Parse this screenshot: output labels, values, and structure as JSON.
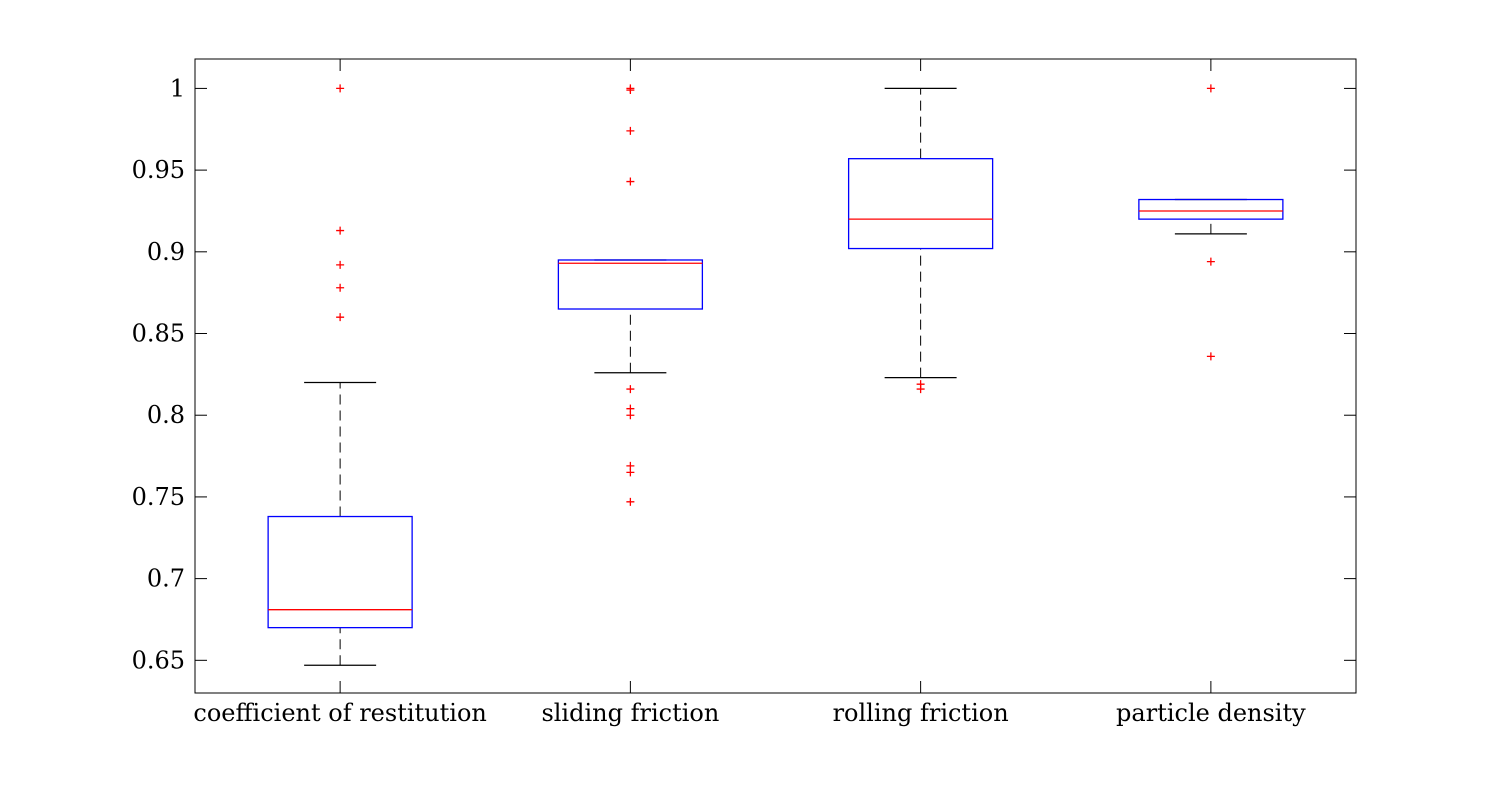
{
  "chart_data": {
    "type": "box",
    "title": "",
    "xlabel": "",
    "ylabel": "",
    "ylim": [
      0.63,
      1.018
    ],
    "y_ticks": [
      0.65,
      0.7,
      0.75,
      0.8,
      0.85,
      0.9,
      0.95,
      1
    ],
    "y_tick_labels": [
      "0.65",
      "0.7",
      "0.75",
      "0.8",
      "0.85",
      "0.9",
      "0.95",
      "1"
    ],
    "grid": false,
    "legend": "none",
    "colors": {
      "box": "#0000ff",
      "median": "#ff0000",
      "whisker": "#000000",
      "outlier": "#ff0000"
    },
    "categories": [
      "coefficient of restitution",
      "sliding friction",
      "rolling friction",
      "particle density"
    ],
    "boxes": [
      {
        "category": "coefficient of restitution",
        "whisker_low": 0.647,
        "q1": 0.67,
        "median": 0.681,
        "q3": 0.738,
        "whisker_high": 0.82,
        "outliers": [
          0.86,
          0.878,
          0.892,
          0.913,
          1.0
        ]
      },
      {
        "category": "sliding friction",
        "whisker_low": 0.826,
        "q1": 0.865,
        "median": 0.893,
        "q3": 0.895,
        "whisker_high": 0.895,
        "outliers": [
          0.747,
          0.765,
          0.769,
          0.8,
          0.804,
          0.816,
          0.943,
          0.974,
          0.999,
          1.0
        ]
      },
      {
        "category": "rolling friction",
        "whisker_low": 0.823,
        "q1": 0.902,
        "median": 0.92,
        "q3": 0.957,
        "whisker_high": 1.0,
        "outliers": [
          0.816,
          0.819
        ]
      },
      {
        "category": "particle density",
        "whisker_low": 0.911,
        "q1": 0.92,
        "median": 0.925,
        "q3": 0.932,
        "whisker_high": 0.932,
        "outliers": [
          0.836,
          0.894,
          1.0
        ]
      }
    ]
  }
}
